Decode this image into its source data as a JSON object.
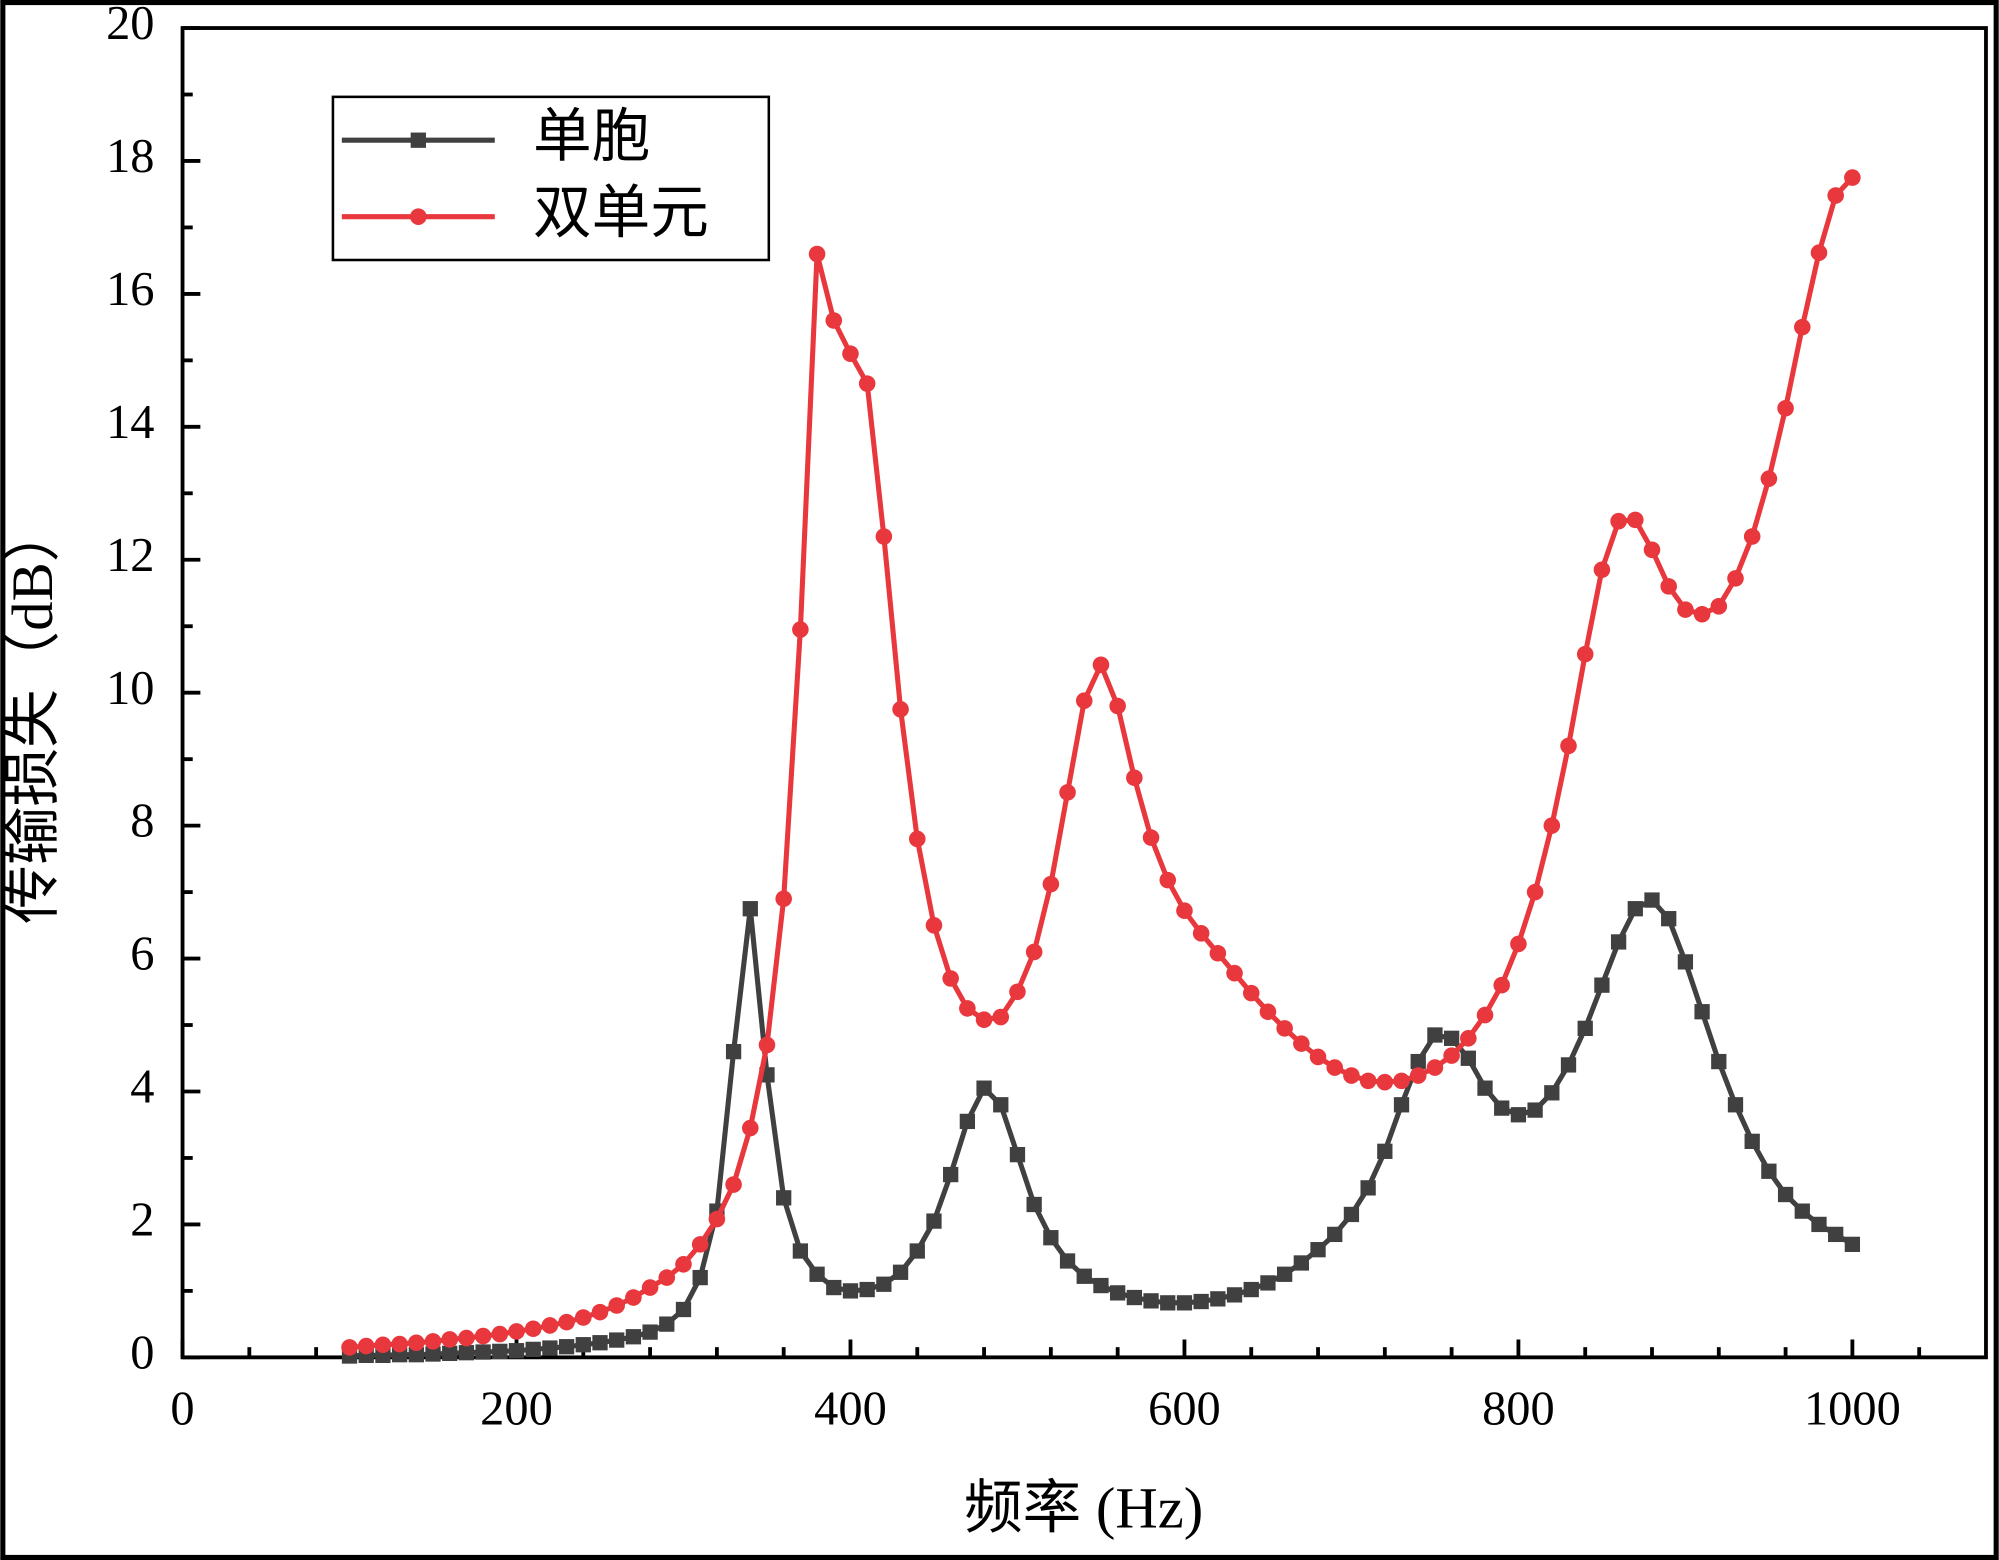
{
  "chart_data": {
    "type": "line",
    "x_label": "频率 (Hz)",
    "y_label": "传输损失（dB）",
    "x": [
      100,
      110,
      120,
      130,
      140,
      150,
      160,
      170,
      180,
      190,
      200,
      210,
      220,
      230,
      240,
      250,
      260,
      270,
      280,
      290,
      300,
      310,
      320,
      330,
      340,
      350,
      360,
      370,
      380,
      390,
      400,
      410,
      420,
      430,
      440,
      450,
      460,
      470,
      480,
      490,
      500,
      510,
      520,
      530,
      540,
      550,
      560,
      570,
      580,
      590,
      600,
      610,
      620,
      630,
      640,
      650,
      660,
      670,
      680,
      690,
      700,
      710,
      720,
      730,
      740,
      750,
      760,
      770,
      780,
      790,
      800,
      810,
      820,
      830,
      840,
      850,
      860,
      870,
      880,
      890,
      900,
      910,
      920,
      930,
      940,
      950,
      960,
      970,
      980,
      990,
      1000
    ],
    "series": [
      {
        "name": "单胞",
        "color": "#404040",
        "marker": "square",
        "values": [
          0.02,
          0.03,
          0.03,
          0.04,
          0.04,
          0.05,
          0.06,
          0.07,
          0.08,
          0.09,
          0.1,
          0.12,
          0.14,
          0.16,
          0.19,
          0.22,
          0.26,
          0.31,
          0.38,
          0.5,
          0.72,
          1.2,
          2.2,
          4.6,
          6.75,
          4.25,
          2.4,
          1.6,
          1.25,
          1.05,
          1.0,
          1.02,
          1.1,
          1.28,
          1.6,
          2.05,
          2.75,
          3.55,
          4.05,
          3.8,
          3.05,
          2.3,
          1.8,
          1.45,
          1.22,
          1.08,
          0.97,
          0.9,
          0.85,
          0.82,
          0.82,
          0.84,
          0.88,
          0.94,
          1.02,
          1.12,
          1.25,
          1.42,
          1.62,
          1.85,
          2.15,
          2.55,
          3.1,
          3.8,
          4.45,
          4.85,
          4.8,
          4.5,
          4.05,
          3.75,
          3.65,
          3.72,
          3.98,
          4.4,
          4.95,
          5.6,
          6.25,
          6.75,
          6.88,
          6.6,
          5.95,
          5.2,
          4.45,
          3.8,
          3.25,
          2.8,
          2.45,
          2.2,
          2.0,
          1.85,
          1.7
        ]
      },
      {
        "name": "双单元",
        "color": "#e8383d",
        "marker": "circle",
        "values": [
          0.15,
          0.17,
          0.19,
          0.2,
          0.22,
          0.24,
          0.27,
          0.29,
          0.32,
          0.35,
          0.39,
          0.43,
          0.48,
          0.53,
          0.6,
          0.68,
          0.78,
          0.9,
          1.05,
          1.2,
          1.4,
          1.7,
          2.08,
          2.6,
          3.45,
          4.7,
          6.9,
          10.95,
          16.6,
          15.6,
          15.1,
          14.65,
          12.35,
          9.75,
          7.8,
          6.5,
          5.7,
          5.25,
          5.08,
          5.12,
          5.5,
          6.1,
          7.12,
          8.5,
          9.88,
          10.42,
          9.8,
          8.72,
          7.82,
          7.18,
          6.72,
          6.38,
          6.08,
          5.78,
          5.48,
          5.2,
          4.95,
          4.72,
          4.52,
          4.36,
          4.24,
          4.16,
          4.14,
          4.16,
          4.24,
          4.36,
          4.54,
          4.8,
          5.15,
          5.6,
          6.22,
          7.0,
          8.0,
          9.2,
          10.58,
          11.85,
          12.58,
          12.6,
          12.15,
          11.6,
          11.25,
          11.18,
          11.3,
          11.72,
          12.35,
          13.22,
          14.28,
          15.5,
          16.62,
          17.48,
          17.75
        ]
      }
    ],
    "xlim": [
      0,
      1080
    ],
    "xticks": [
      0,
      200,
      400,
      600,
      800,
      1000
    ],
    "xminorticks": [
      40,
      80,
      120,
      160,
      240,
      280,
      320,
      360,
      440,
      480,
      520,
      560,
      640,
      680,
      720,
      760,
      840,
      880,
      920,
      960,
      1040
    ],
    "ylim": [
      0,
      20
    ],
    "yticks": [
      0,
      2,
      4,
      6,
      8,
      10,
      12,
      14,
      16,
      18,
      20
    ],
    "yminorticks": [
      1,
      3,
      5,
      7,
      9,
      11,
      13,
      15,
      17,
      19
    ],
    "legend": "upper-left"
  }
}
